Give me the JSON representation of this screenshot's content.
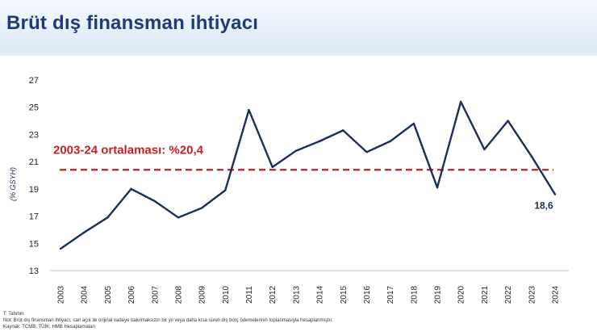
{
  "header": {
    "title": "Brüt dış finansman ihtiyacı"
  },
  "chart_data": {
    "type": "line",
    "title": "",
    "xlabel": "",
    "ylabel": "(% GSYH)",
    "ylim": [
      13,
      27
    ],
    "yticks": [
      13,
      15,
      17,
      19,
      21,
      23,
      25,
      27
    ],
    "grid": false,
    "x": [
      "2003",
      "2004",
      "2005",
      "2006",
      "2007",
      "2008",
      "2009",
      "2010",
      "2011",
      "2012",
      "2013",
      "2014",
      "2015",
      "2016",
      "2017",
      "2018",
      "2019",
      "2020",
      "2021",
      "2022",
      "2023",
      "2024"
    ],
    "series": [
      {
        "name": "",
        "color": "#1c2f57",
        "values": [
          14.6,
          15.8,
          16.9,
          19.0,
          18.1,
          16.9,
          17.6,
          18.9,
          24.8,
          20.6,
          21.8,
          22.5,
          23.3,
          21.7,
          22.5,
          23.8,
          19.1,
          25.4,
          21.9,
          24.0,
          21.4,
          18.6
        ]
      }
    ],
    "reference_line": {
      "value": 20.4,
      "label": "2003-24 ortalaması: %20,4",
      "color": "#c21f26",
      "style": "dashed"
    },
    "last_point_label": "18,6"
  },
  "notes": {
    "line1": "T: Tahmin",
    "line2": "Not: Brüt dış finansman ihtiyacı, cari açık ile orijinal vadeye bakılmaksızın bir yıl veya daha kısa süreli dış borç ödemelerinin toplanmasıyla hesaplanmıştır.",
    "line3": "Kaynak: TCMB, TÜİK, HMB Hesaplamaları"
  }
}
